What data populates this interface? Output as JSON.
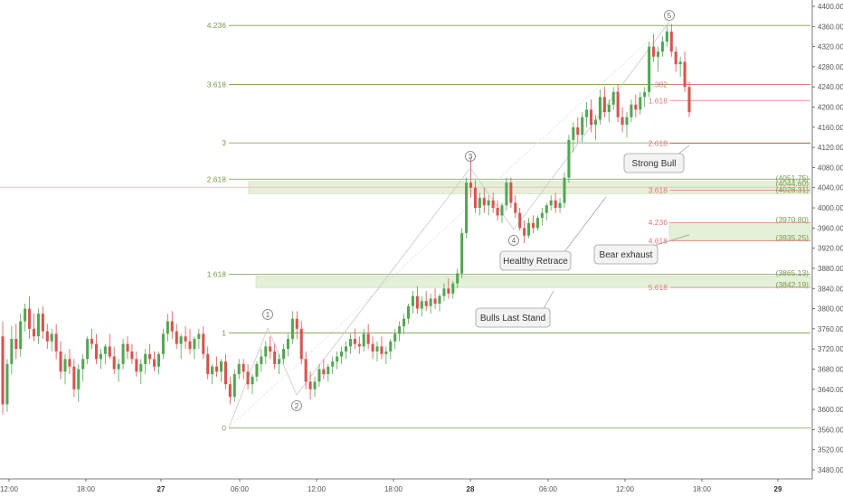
{
  "chart_data": {
    "type": "candlestick",
    "y_axis": {
      "min": 3460,
      "max": 4410,
      "position": "right",
      "ticks": [
        "3480.00",
        "3520.00",
        "3560.00",
        "3600.00",
        "3640.00",
        "3680.00",
        "3720.00",
        "3760.00",
        "3800.00",
        "3840.00",
        "3880.00",
        "3920.00",
        "3960.00",
        "4000.00",
        "4040.00",
        "4080.00",
        "4120.00",
        "4160.00",
        "4200.00",
        "4240.00",
        "4280.00",
        "4320.00",
        "4360.00",
        "4400.00"
      ]
    },
    "x_axis": {
      "ticks": [
        {
          "label": "12:00",
          "bold": false
        },
        {
          "label": "18:00",
          "bold": false
        },
        {
          "label": "27",
          "bold": true
        },
        {
          "label": "06:00",
          "bold": false
        },
        {
          "label": "12:00",
          "bold": false
        },
        {
          "label": "18:00",
          "bold": false
        },
        {
          "label": "28",
          "bold": true
        },
        {
          "label": "06:00",
          "bold": false
        },
        {
          "label": "12:00",
          "bold": false
        },
        {
          "label": "18:00",
          "bold": false
        },
        {
          "label": "29",
          "bold": true
        }
      ]
    },
    "colors": {
      "up": "#53a653",
      "down": "#d9534f",
      "fib_green": "#7a9a4e",
      "fib_red": "#e0787a",
      "zone": "#e5f0d8"
    },
    "fib_extensions": [
      {
        "label": "0",
        "price": 3563
      },
      {
        "label": "1",
        "price": 3752
      },
      {
        "label": "1.618",
        "price": 3868
      },
      {
        "label": "2.618",
        "price": 4057
      },
      {
        "label": "3",
        "price": 4129
      },
      {
        "label": "3.618",
        "price": 4245
      },
      {
        "label": "4.236",
        "price": 4362
      }
    ],
    "fib_projections": [
      {
        "label": "2.618",
        "price": 4128
      },
      {
        "label": "3.618",
        "price": 4035
      },
      {
        "label": "4.236",
        "price": 3971
      },
      {
        "label": "4.618",
        "price": 3935
      },
      {
        "label": "5.618",
        "price": 3842
      },
      {
        "label": ".382",
        "price": 4245
      },
      {
        "label": "1.618",
        "price": 4213
      }
    ],
    "level_labels": [
      "(4051.75)",
      "(4044.60)",
      "(4028.31)",
      "(3970.80)",
      "(3935.25)",
      "(3865.13)",
      "(3842.19)"
    ],
    "zones": [
      {
        "from": 4028,
        "to": 4052
      },
      {
        "from": 3935,
        "to": 3971
      },
      {
        "from": 3842,
        "to": 3865
      }
    ],
    "waves": [
      {
        "label": "1",
        "price": 3793
      },
      {
        "label": "2",
        "price": 3626
      },
      {
        "label": "3",
        "price": 4106
      },
      {
        "label": "4",
        "price": 3912
      },
      {
        "label": "5",
        "price": 4398
      }
    ],
    "callouts": [
      "Strong Bull",
      "Healthy Retrace",
      "Bear exhaust",
      "Bulls Last Stand"
    ],
    "reference_price": 4041,
    "candles": [
      [
        3745,
        3775,
        3590,
        3610
      ],
      [
        3610,
        3700,
        3595,
        3690
      ],
      [
        3690,
        3765,
        3670,
        3740
      ],
      [
        3740,
        3770,
        3700,
        3720
      ],
      [
        3720,
        3790,
        3705,
        3775
      ],
      [
        3775,
        3810,
        3755,
        3800
      ],
      [
        3800,
        3825,
        3740,
        3760
      ],
      [
        3760,
        3790,
        3735,
        3745
      ],
      [
        3745,
        3800,
        3730,
        3790
      ],
      [
        3790,
        3805,
        3740,
        3755
      ],
      [
        3755,
        3770,
        3720,
        3735
      ],
      [
        3735,
        3760,
        3715,
        3750
      ],
      [
        3750,
        3770,
        3700,
        3715
      ],
      [
        3715,
        3735,
        3660,
        3675
      ],
      [
        3675,
        3710,
        3650,
        3700
      ],
      [
        3700,
        3720,
        3670,
        3685
      ],
      [
        3685,
        3700,
        3625,
        3640
      ],
      [
        3640,
        3690,
        3615,
        3680
      ],
      [
        3680,
        3710,
        3655,
        3700
      ],
      [
        3700,
        3745,
        3690,
        3740
      ],
      [
        3740,
        3760,
        3720,
        3730
      ],
      [
        3730,
        3750,
        3690,
        3700
      ],
      [
        3700,
        3720,
        3680,
        3710
      ],
      [
        3710,
        3730,
        3690,
        3725
      ],
      [
        3725,
        3750,
        3700,
        3705
      ],
      [
        3705,
        3725,
        3670,
        3680
      ],
      [
        3680,
        3700,
        3655,
        3690
      ],
      [
        3690,
        3740,
        3680,
        3730
      ],
      [
        3730,
        3745,
        3700,
        3715
      ],
      [
        3715,
        3730,
        3690,
        3700
      ],
      [
        3700,
        3715,
        3665,
        3675
      ],
      [
        3675,
        3700,
        3650,
        3690
      ],
      [
        3690,
        3720,
        3670,
        3710
      ],
      [
        3710,
        3730,
        3690,
        3700
      ],
      [
        3700,
        3715,
        3675,
        3685
      ],
      [
        3685,
        3715,
        3670,
        3710
      ],
      [
        3710,
        3760,
        3700,
        3750
      ],
      [
        3750,
        3790,
        3735,
        3775
      ],
      [
        3775,
        3795,
        3740,
        3755
      ],
      [
        3755,
        3770,
        3720,
        3730
      ],
      [
        3730,
        3750,
        3700,
        3745
      ],
      [
        3745,
        3765,
        3720,
        3735
      ],
      [
        3735,
        3760,
        3710,
        3720
      ],
      [
        3720,
        3745,
        3700,
        3740
      ],
      [
        3740,
        3760,
        3720,
        3750
      ],
      [
        3750,
        3765,
        3700,
        3710
      ],
      [
        3710,
        3725,
        3660,
        3670
      ],
      [
        3670,
        3690,
        3650,
        3685
      ],
      [
        3685,
        3705,
        3665,
        3675
      ],
      [
        3675,
        3700,
        3655,
        3695
      ],
      [
        3695,
        3710,
        3640,
        3650
      ],
      [
        3650,
        3665,
        3610,
        3625
      ],
      [
        3625,
        3680,
        3615,
        3670
      ],
      [
        3670,
        3700,
        3660,
        3690
      ],
      [
        3690,
        3700,
        3660,
        3675
      ],
      [
        3675,
        3690,
        3640,
        3650
      ],
      [
        3650,
        3670,
        3630,
        3665
      ],
      [
        3665,
        3695,
        3655,
        3690
      ],
      [
        3690,
        3720,
        3675,
        3705
      ],
      [
        3705,
        3735,
        3690,
        3725
      ],
      [
        3725,
        3745,
        3700,
        3715
      ],
      [
        3715,
        3730,
        3680,
        3690
      ],
      [
        3690,
        3710,
        3670,
        3700
      ],
      [
        3700,
        3730,
        3690,
        3720
      ],
      [
        3720,
        3750,
        3705,
        3740
      ],
      [
        3740,
        3795,
        3730,
        3780
      ],
      [
        3780,
        3795,
        3740,
        3760
      ],
      [
        3760,
        3775,
        3690,
        3700
      ],
      [
        3700,
        3715,
        3640,
        3655
      ],
      [
        3655,
        3675,
        3620,
        3640
      ],
      [
        3640,
        3665,
        3625,
        3655
      ],
      [
        3655,
        3690,
        3645,
        3680
      ],
      [
        3680,
        3700,
        3660,
        3670
      ],
      [
        3670,
        3690,
        3655,
        3685
      ],
      [
        3685,
        3705,
        3670,
        3695
      ],
      [
        3695,
        3715,
        3680,
        3705
      ],
      [
        3705,
        3725,
        3690,
        3715
      ],
      [
        3715,
        3735,
        3700,
        3725
      ],
      [
        3725,
        3750,
        3710,
        3740
      ],
      [
        3740,
        3760,
        3720,
        3730
      ],
      [
        3730,
        3745,
        3710,
        3725
      ],
      [
        3725,
        3760,
        3715,
        3750
      ],
      [
        3750,
        3770,
        3720,
        3730
      ],
      [
        3730,
        3745,
        3700,
        3715
      ],
      [
        3715,
        3735,
        3695,
        3725
      ],
      [
        3725,
        3745,
        3700,
        3710
      ],
      [
        3710,
        3725,
        3690,
        3715
      ],
      [
        3715,
        3740,
        3700,
        3735
      ],
      [
        3735,
        3760,
        3720,
        3750
      ],
      [
        3750,
        3775,
        3735,
        3765
      ],
      [
        3765,
        3790,
        3750,
        3780
      ],
      [
        3780,
        3810,
        3770,
        3805
      ],
      [
        3805,
        3835,
        3790,
        3825
      ],
      [
        3825,
        3845,
        3790,
        3800
      ],
      [
        3800,
        3825,
        3785,
        3815
      ],
      [
        3815,
        3835,
        3795,
        3805
      ],
      [
        3805,
        3830,
        3790,
        3820
      ],
      [
        3820,
        3840,
        3800,
        3810
      ],
      [
        3810,
        3830,
        3795,
        3825
      ],
      [
        3825,
        3850,
        3815,
        3840
      ],
      [
        3840,
        3860,
        3820,
        3830
      ],
      [
        3830,
        3855,
        3820,
        3850
      ],
      [
        3850,
        3880,
        3840,
        3870
      ],
      [
        3870,
        3960,
        3860,
        3950
      ],
      [
        3950,
        4060,
        3940,
        4050
      ],
      [
        4050,
        4100,
        4020,
        4040
      ],
      [
        4040,
        4055,
        3990,
        4000
      ],
      [
        4000,
        4030,
        3985,
        4020
      ],
      [
        4020,
        4040,
        3990,
        4005
      ],
      [
        4005,
        4025,
        3985,
        4015
      ],
      [
        4015,
        4030,
        3990,
        4000
      ],
      [
        4000,
        4015,
        3975,
        3985
      ],
      [
        3985,
        4010,
        3970,
        4005
      ],
      [
        4005,
        4060,
        3995,
        4050
      ],
      [
        4050,
        4060,
        4000,
        4010
      ],
      [
        4010,
        4025,
        3980,
        3990
      ],
      [
        3990,
        4000,
        3955,
        3960
      ],
      [
        3960,
        3975,
        3930,
        3945
      ],
      [
        3945,
        3980,
        3940,
        3970
      ],
      [
        3970,
        3985,
        3950,
        3960
      ],
      [
        3960,
        3985,
        3955,
        3980
      ],
      [
        3980,
        4000,
        3965,
        3990
      ],
      [
        3990,
        4010,
        3975,
        4005
      ],
      [
        4005,
        4025,
        3995,
        4015
      ],
      [
        4015,
        4030,
        3990,
        4000
      ],
      [
        4000,
        4020,
        3990,
        4010
      ],
      [
        4010,
        4070,
        4000,
        4060
      ],
      [
        4060,
        4145,
        4050,
        4135
      ],
      [
        4135,
        4170,
        4110,
        4160
      ],
      [
        4160,
        4180,
        4130,
        4145
      ],
      [
        4145,
        4190,
        4130,
        4180
      ],
      [
        4180,
        4210,
        4160,
        4195
      ],
      [
        4195,
        4215,
        4150,
        4165
      ],
      [
        4165,
        4185,
        4135,
        4175
      ],
      [
        4175,
        4235,
        4165,
        4220
      ],
      [
        4220,
        4240,
        4180,
        4190
      ],
      [
        4190,
        4215,
        4170,
        4205
      ],
      [
        4205,
        4240,
        4195,
        4230
      ],
      [
        4230,
        4245,
        4170,
        4180
      ],
      [
        4180,
        4200,
        4150,
        4165
      ],
      [
        4165,
        4190,
        4140,
        4180
      ],
      [
        4180,
        4215,
        4170,
        4205
      ],
      [
        4205,
        4225,
        4180,
        4195
      ],
      [
        4195,
        4230,
        4185,
        4220
      ],
      [
        4220,
        4240,
        4200,
        4230
      ],
      [
        4230,
        4330,
        4220,
        4320
      ],
      [
        4320,
        4345,
        4290,
        4300
      ],
      [
        4300,
        4320,
        4270,
        4310
      ],
      [
        4310,
        4340,
        4300,
        4330
      ],
      [
        4330,
        4360,
        4320,
        4350
      ],
      [
        4350,
        4365,
        4300,
        4310
      ],
      [
        4310,
        4320,
        4270,
        4285
      ],
      [
        4285,
        4300,
        4260,
        4290
      ],
      [
        4290,
        4310,
        4230,
        4240
      ],
      [
        4240,
        4250,
        4180,
        4190
      ]
    ]
  }
}
